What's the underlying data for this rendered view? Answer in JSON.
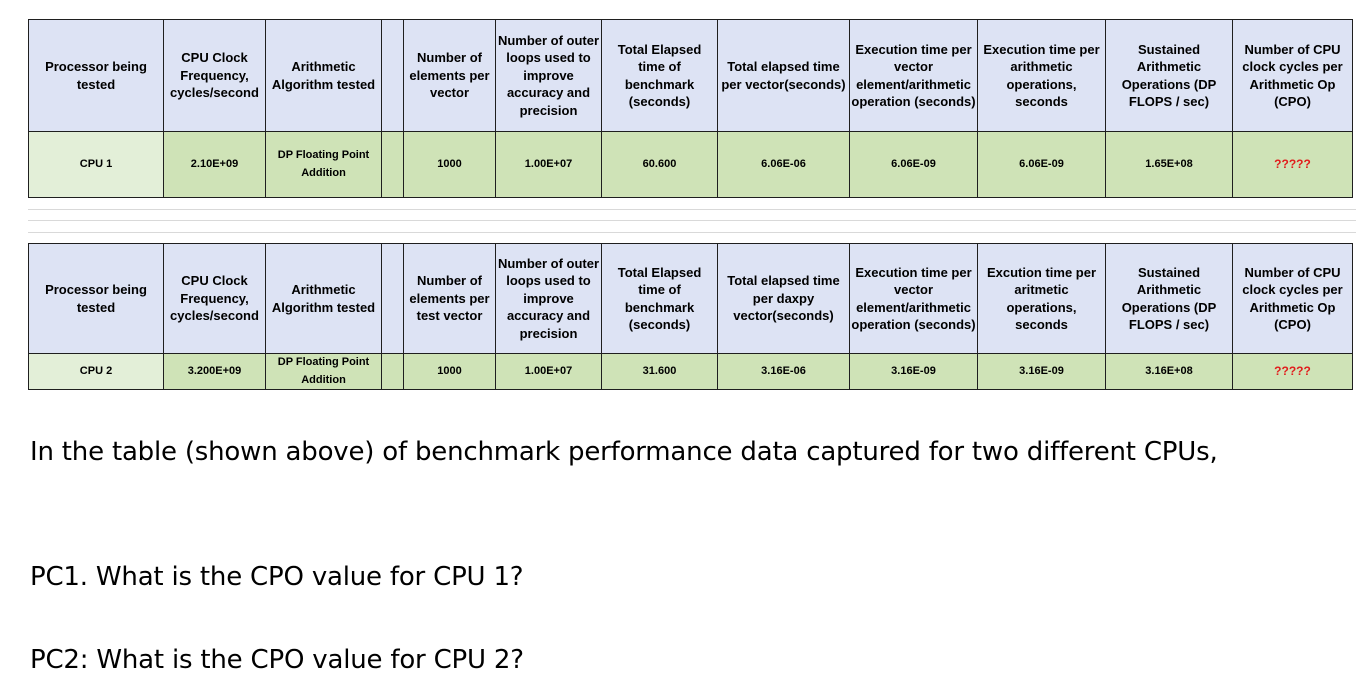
{
  "table1": {
    "headers": [
      "Processor being tested",
      "CPU Clock Frequency, cycles/second",
      "Arithmetic Algorithm tested",
      "",
      "Number of elements per vector",
      "Number of outer loops used to improve accuracy and precision",
      "Total Elapsed time of benchmark (seconds)",
      "Total elapsed time per vector(seconds)",
      "Execution time per vector element/arithmetic operation (seconds)",
      "Execution time per arithmetic operations, seconds",
      "Sustained Arithmetic Operations (DP FLOPS / sec)",
      "Number of CPU clock cycles per Arithmetic Op (CPO)"
    ],
    "row": [
      "CPU 1",
      "2.10E+09",
      "DP Floating Point Addition",
      "",
      "1000",
      "1.00E+07",
      "60.600",
      "6.06E-06",
      "6.06E-09",
      "6.06E-09",
      "1.65E+08",
      "?????"
    ]
  },
  "table2": {
    "headers": [
      "Processor being tested",
      "CPU Clock Frequency, cycles/second",
      "Arithmetic Algorithm tested",
      "",
      "Number of elements per test vector",
      "Number of outer loops used to improve accuracy and precision",
      "Total Elapsed time of benchmark (seconds)",
      "Total elapsed time per daxpy vector(seconds)",
      "Execution time per vector element/arithmetic operation (seconds)",
      "Excution time per aritmetic operations, seconds",
      "Sustained Arithmetic Operations (DP FLOPS / sec)",
      "Number of CPU clock cycles per Arithmetic Op (CPO)"
    ],
    "row": [
      "CPU 2",
      "3.200E+09",
      "DP Floating Point Addition",
      "",
      "1000",
      "1.00E+07",
      "31.600",
      "3.16E-06",
      "3.16E-09",
      "3.16E-09",
      "3.16E+08",
      "?????"
    ]
  },
  "text": {
    "paragraph": "In the table (shown above) of benchmark performance data captured for two different CPUs,",
    "q1": "PC1.  What is the CPO value for CPU 1?",
    "q2": "PC2:  What is the CPO value for CPU 2?"
  },
  "colors": {
    "header_bg": "#dde3f4",
    "data_bg": "#cfe3b7",
    "first_cell_bg": "#e3efd8",
    "question_marks": "#e11d1d"
  }
}
